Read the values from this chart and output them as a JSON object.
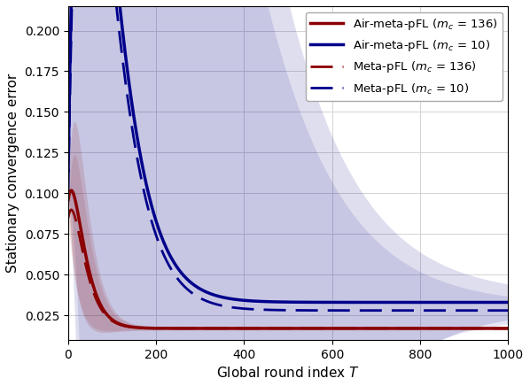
{
  "title": "",
  "xlabel": "Global round index $T$",
  "ylabel": "Stationary convergence error",
  "xlim": [
    0,
    1000
  ],
  "ylim": [
    0.01,
    0.215
  ],
  "xticks": [
    0,
    200,
    400,
    600,
    800,
    1000
  ],
  "yticks": [
    0.025,
    0.05,
    0.075,
    0.1,
    0.125,
    0.15,
    0.175,
    0.2
  ],
  "color_red": "#8B0000",
  "color_blue": "#00008B",
  "figsize": [
    5.98,
    4.36
  ],
  "dpi": 100,
  "curve_air_red": {
    "A": 0.078,
    "B": 0.0058,
    "C": 0.048,
    "D": 0.017
  },
  "curve_meta_red": {
    "A": 0.067,
    "B": 0.005,
    "C": 0.048,
    "D": 0.017
  },
  "curve_air_blue": {
    "A": 0.072,
    "B": 0.02,
    "C": 0.022,
    "D": 0.033
  },
  "curve_meta_blue": {
    "A": 0.065,
    "B": 0.0185,
    "C": 0.022,
    "D": 0.028
  },
  "band_red_A": 0.006,
  "band_red_C": 0.045,
  "band_red_D": 0.001,
  "band_blue_A": 0.018,
  "band_blue_C": 0.008,
  "band_blue_D": 0.004
}
